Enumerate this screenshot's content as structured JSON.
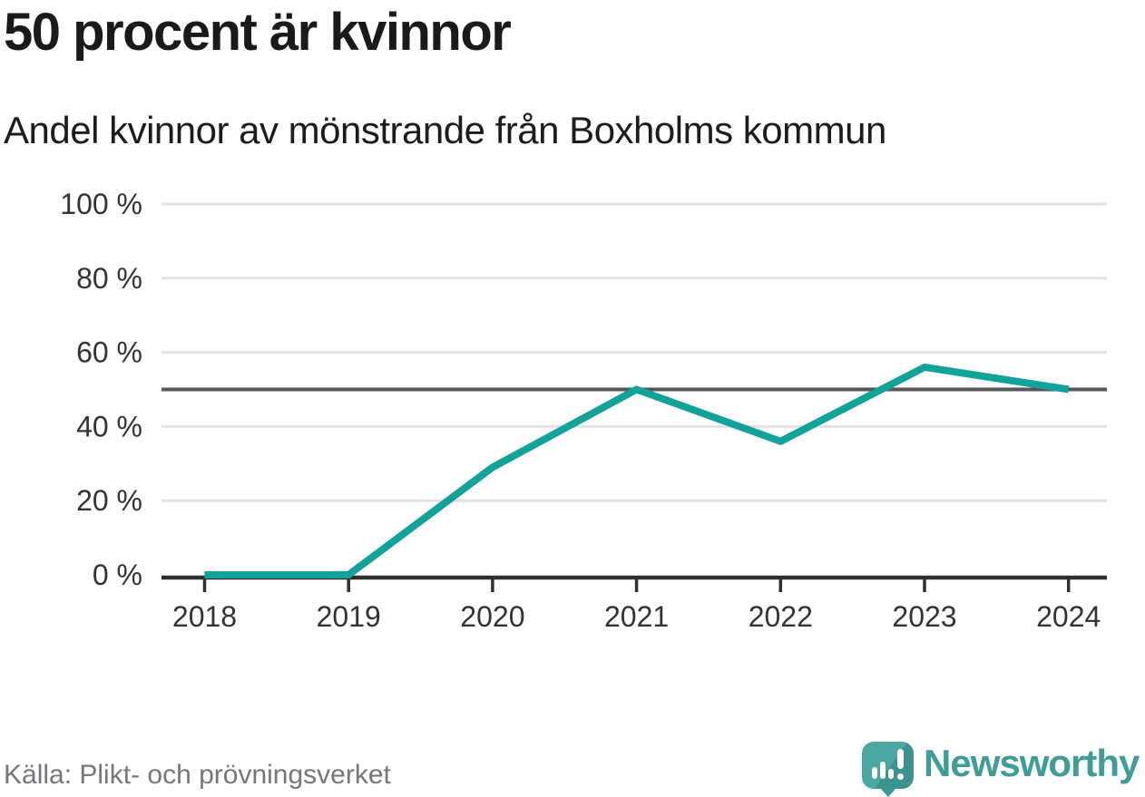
{
  "header": {
    "title": "50 procent är kvinnor",
    "subtitle": "Andel kvinnor av mönstrande från Boxholms kommun"
  },
  "chart_data": {
    "type": "line",
    "title": "50 procent är kvinnor",
    "subtitle": "Andel kvinnor av mönstrande från Boxholms kommun",
    "x": [
      "2018",
      "2019",
      "2020",
      "2021",
      "2022",
      "2023",
      "2024"
    ],
    "series": [
      {
        "name": "Andel kvinnor av mönstrande",
        "values": [
          0,
          0,
          29,
          50,
          36,
          56,
          50
        ]
      }
    ],
    "unit": "%",
    "ylim": [
      0,
      100
    ],
    "yticks": [
      {
        "value": 0,
        "label": "0 %"
      },
      {
        "value": 20,
        "label": "20 %"
      },
      {
        "value": 40,
        "label": "40 %"
      },
      {
        "value": 60,
        "label": "60 %"
      },
      {
        "value": 80,
        "label": "80 %"
      },
      {
        "value": 100,
        "label": "100 %"
      }
    ],
    "reference_line": {
      "value": 50
    },
    "grid": "horizontal",
    "legend": "none"
  },
  "footer": {
    "source": "Källa: Plikt- och prövningsverket",
    "brand": "Newsworthy"
  },
  "colors": {
    "line": "#11a39a",
    "grid": "#e2e2e2",
    "axis": "#2f2f2f",
    "reference": "#55565a",
    "tick_label": "#333333",
    "text_dark": "#1a1a1a",
    "text_muted": "#76767c",
    "brand_teal": "#3f9c98"
  }
}
